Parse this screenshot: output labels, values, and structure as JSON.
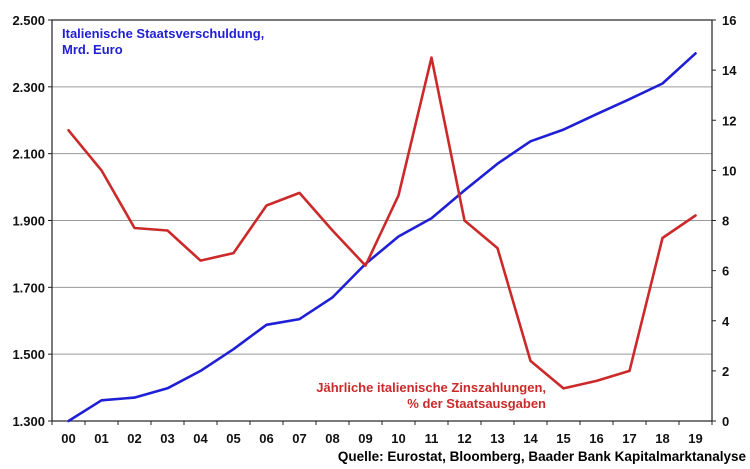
{
  "chart_data": {
    "type": "line",
    "categories": [
      "00",
      "01",
      "02",
      "03",
      "04",
      "05",
      "06",
      "07",
      "08",
      "09",
      "10",
      "11",
      "12",
      "13",
      "14",
      "15",
      "16",
      "17",
      "18",
      "19"
    ],
    "series": [
      {
        "name": "Italienische Staatsverschuldung, Mrd. Euro",
        "axis": "left",
        "color": "#1f1fd6",
        "values": [
          1300,
          1362,
          1370,
          1398,
          1450,
          1515,
          1588,
          1605,
          1670,
          1770,
          1852,
          1907,
          1990,
          2070,
          2137,
          2172,
          2218,
          2263,
          2310,
          2400
        ]
      },
      {
        "name": "Jährliche italienische Zinszahlungen, % der Staatsausgaben",
        "axis": "right",
        "color": "#cc2a2a",
        "values": [
          11.6,
          10.0,
          7.7,
          7.6,
          6.4,
          6.7,
          8.6,
          9.1,
          7.6,
          6.2,
          9.0,
          14.5,
          8.0,
          6.9,
          2.4,
          1.3,
          1.6,
          2.0,
          7.3,
          8.2
        ]
      }
    ],
    "y_left": {
      "min": 1300,
      "max": 2500,
      "ticks": [
        "1.300",
        "1.500",
        "1.700",
        "1.900",
        "2.100",
        "2.300",
        "2.500"
      ]
    },
    "y_right": {
      "min": 0,
      "max": 16,
      "ticks": [
        "0",
        "2",
        "4",
        "6",
        "8",
        "10",
        "12",
        "14",
        "16"
      ]
    },
    "grid": true,
    "annotations": {
      "blue_line1": "Italienische Staatsverschuldung,",
      "blue_line2": "Mrd. Euro",
      "red_line1": "Jährliche italienische Zinszahlungen,",
      "red_line2": "% der Staatsausgaben"
    },
    "source": "Quelle: Eurostat, Bloomberg, Baader Bank Kapitalmarktanalyse"
  }
}
